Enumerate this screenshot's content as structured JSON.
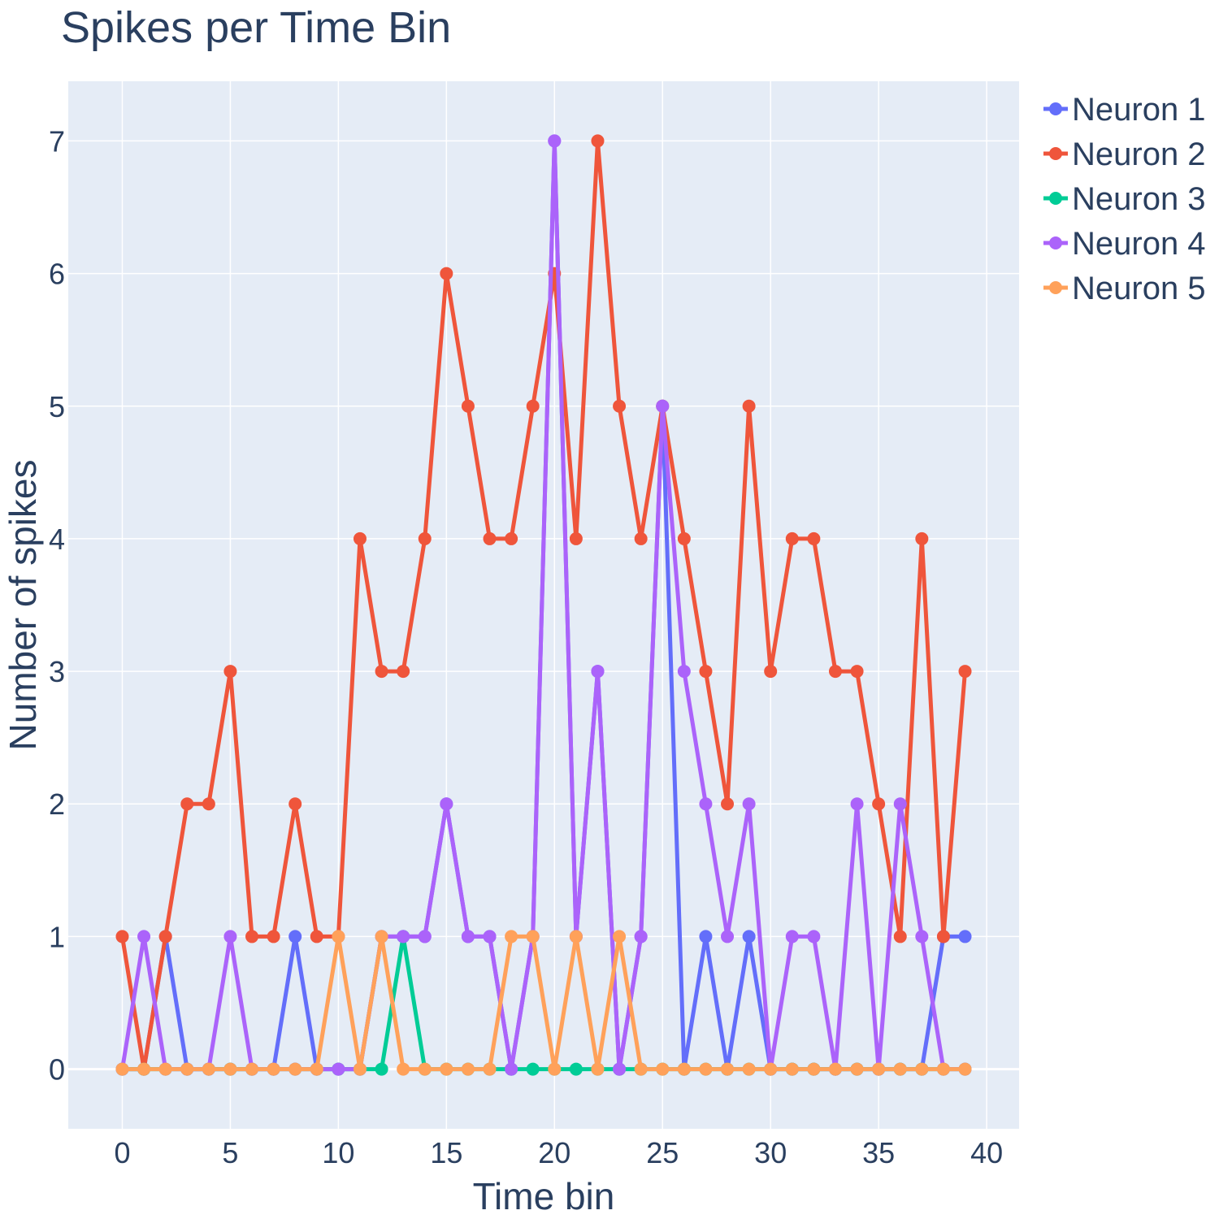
{
  "chart_data": {
    "type": "line",
    "title": "Spikes per Time Bin",
    "xlabel": "Time bin",
    "ylabel": "Number of spikes",
    "xlim": [
      -2.5,
      41.5
    ],
    "ylim": [
      -0.45,
      7.45
    ],
    "xticks": [
      0,
      5,
      10,
      15,
      20,
      25,
      30,
      35,
      40
    ],
    "yticks": [
      0,
      1,
      2,
      3,
      4,
      5,
      6,
      7
    ],
    "grid": true,
    "legend_position": "top-right",
    "background": "#e5ecf6",
    "x": [
      0,
      1,
      2,
      3,
      4,
      5,
      6,
      7,
      8,
      9,
      10,
      11,
      12,
      13,
      14,
      15,
      16,
      17,
      18,
      19,
      20,
      21,
      22,
      23,
      24,
      25,
      26,
      27,
      28,
      29,
      30,
      31,
      32,
      33,
      34,
      35,
      36,
      37,
      38,
      39
    ],
    "series": [
      {
        "name": "Neuron 1",
        "color": "#636efa",
        "values": [
          0,
          0,
          1,
          0,
          0,
          0,
          0,
          0,
          1,
          0,
          0,
          0,
          1,
          1,
          1,
          2,
          1,
          1,
          0,
          1,
          7,
          1,
          3,
          0,
          1,
          5,
          0,
          1,
          0,
          1,
          0,
          0,
          0,
          0,
          0,
          0,
          0,
          0,
          1,
          1
        ]
      },
      {
        "name": "Neuron 2",
        "color": "#ef553b",
        "values": [
          1,
          0,
          1,
          2,
          2,
          3,
          1,
          1,
          2,
          1,
          1,
          4,
          3,
          3,
          4,
          6,
          5,
          4,
          4,
          5,
          6,
          4,
          7,
          5,
          4,
          5,
          4,
          3,
          2,
          5,
          3,
          4,
          4,
          3,
          3,
          2,
          1,
          4,
          1,
          3
        ]
      },
      {
        "name": "Neuron 3",
        "color": "#00cc96",
        "values": [
          0,
          0,
          0,
          0,
          0,
          0,
          0,
          0,
          0,
          0,
          0,
          0,
          0,
          1,
          0,
          0,
          0,
          0,
          0,
          0,
          0,
          0,
          0,
          0,
          0,
          0,
          0,
          0,
          0,
          0,
          0,
          0,
          0,
          0,
          0,
          0,
          0,
          0,
          0,
          0
        ]
      },
      {
        "name": "Neuron 4",
        "color": "#ab63fa",
        "values": [
          0,
          1,
          0,
          0,
          0,
          1,
          0,
          0,
          0,
          0,
          0,
          0,
          1,
          1,
          1,
          2,
          1,
          1,
          0,
          1,
          7,
          1,
          3,
          0,
          1,
          5,
          3,
          2,
          1,
          2,
          0,
          1,
          1,
          0,
          2,
          0,
          2,
          1,
          0,
          0
        ]
      },
      {
        "name": "Neuron 5",
        "color": "#ffa15a",
        "values": [
          0,
          0,
          0,
          0,
          0,
          0,
          0,
          0,
          0,
          0,
          1,
          0,
          1,
          0,
          0,
          0,
          0,
          0,
          1,
          1,
          0,
          1,
          0,
          1,
          0,
          0,
          0,
          0,
          0,
          0,
          0,
          0,
          0,
          0,
          0,
          0,
          0,
          0,
          0,
          0
        ]
      }
    ]
  }
}
